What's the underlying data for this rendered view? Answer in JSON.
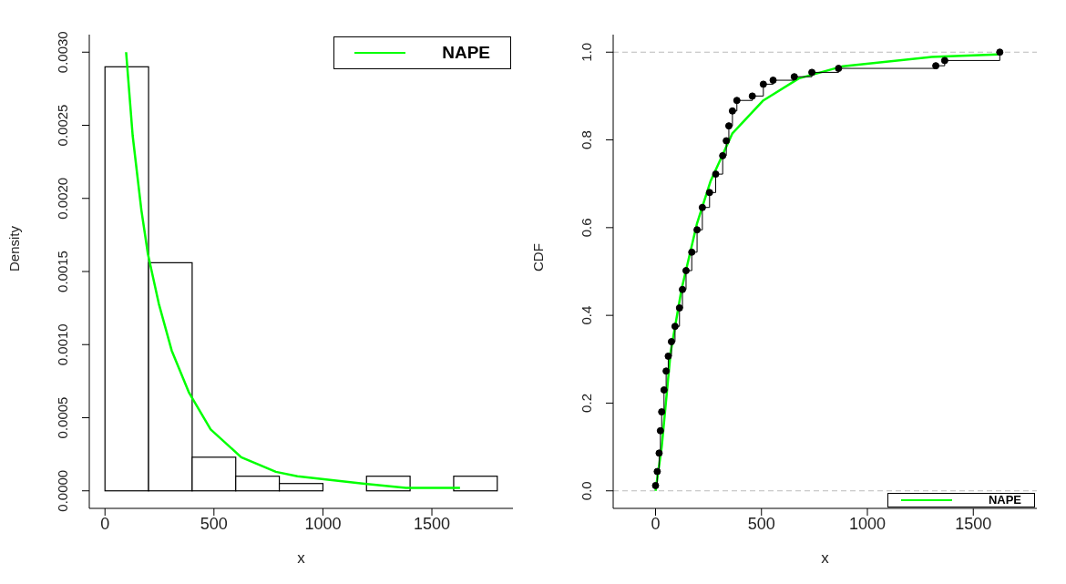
{
  "chart_data": [
    {
      "type": "histogram",
      "xlabel": "x",
      "ylabel": "Density",
      "bins": [
        0,
        200,
        400,
        600,
        800,
        1000,
        1200,
        1400,
        1600,
        1800
      ],
      "values": [
        0.0029,
        0.00156,
        0.00023,
        0.0001,
        5e-05,
        0,
        0.0001,
        0,
        0.0001
      ],
      "color": "#ffffff",
      "series": [
        {
          "type": "line",
          "name": "NAPE",
          "color": "#00ff00",
          "x": [
            97,
            127,
            167,
            197,
            247,
            306,
            386,
            485,
            625,
            784,
            883,
            1182,
            1381,
            1629
          ],
          "values": [
            0.003,
            0.00243,
            0.00192,
            0.00162,
            0.00128,
            0.00096,
            0.00067,
            0.00042,
            0.00023,
            0.00013,
            0.0001,
            5e-05,
            2e-05,
            2e-05
          ]
        }
      ],
      "xlim": [
        -72,
        1872
      ],
      "xticks": [
        0,
        500,
        1000,
        1500
      ],
      "ylim": [
        -0.00012,
        0.00312
      ],
      "yticks": [
        {
          "value": 0,
          "label": "0.0000"
        },
        {
          "value": 0.0005,
          "label": "0.0005"
        },
        {
          "value": 0.001,
          "label": "0.0010"
        },
        {
          "value": 0.0015,
          "label": "0.0015"
        },
        {
          "value": 0.002,
          "label": "0.0020"
        },
        {
          "value": 0.0025,
          "label": "0.0025"
        },
        {
          "value": 0.003,
          "label": "0.0030"
        }
      ],
      "grid": false,
      "legend": "top right"
    },
    {
      "type": "step",
      "xlabel": "x",
      "ylabel": "CDF",
      "series": [
        {
          "type": "step",
          "color": "#000000",
          "marker": "circle",
          "x": [
            0,
            8,
            17,
            23,
            29,
            40,
            50,
            60,
            75,
            92,
            113,
            127,
            144,
            171,
            196,
            221,
            255,
            284,
            317,
            334,
            346,
            363,
            384,
            457,
            509,
            555,
            655,
            738,
            864,
            1323,
            1365,
            1625
          ],
          "values": [
            0.012,
            0.044,
            0.086,
            0.137,
            0.18,
            0.23,
            0.273,
            0.307,
            0.34,
            0.375,
            0.417,
            0.459,
            0.502,
            0.544,
            0.595,
            0.646,
            0.68,
            0.722,
            0.764,
            0.798,
            0.832,
            0.866,
            0.89,
            0.9,
            0.927,
            0.936,
            0.944,
            0.954,
            0.963,
            0.969,
            0.981,
            1.0
          ]
        },
        {
          "type": "line",
          "name": "NAPE",
          "color": "#00ff00",
          "marker": "none",
          "x": [
            0,
            29,
            71,
            123,
            196,
            259,
            363,
            509,
            676,
            885,
            1302,
            1615
          ],
          "values": [
            0,
            0.1,
            0.315,
            0.46,
            0.61,
            0.705,
            0.815,
            0.89,
            0.94,
            0.968,
            0.989,
            0.995
          ]
        }
      ],
      "xlim": [
        -200,
        1800
      ],
      "xticks": [
        0,
        500,
        1000,
        1500
      ],
      "ylim": [
        -0.04,
        1.04
      ],
      "yticks": [
        {
          "value": 0,
          "label": "0.0"
        },
        {
          "value": 0.2,
          "label": "0.2"
        },
        {
          "value": 0.4,
          "label": "0.4"
        },
        {
          "value": 0.6,
          "label": "0.6"
        },
        {
          "value": 0.8,
          "label": "0.8"
        },
        {
          "value": 1,
          "label": "1.0"
        }
      ],
      "ref_lines": [
        {
          "axis": "y",
          "value": 0,
          "color": "#bbbbbb",
          "line_style": "dashed"
        },
        {
          "axis": "y",
          "value": 1,
          "color": "#bbbbbb",
          "line_style": "dashed"
        }
      ],
      "grid": false,
      "legend": "bottom right"
    }
  ]
}
